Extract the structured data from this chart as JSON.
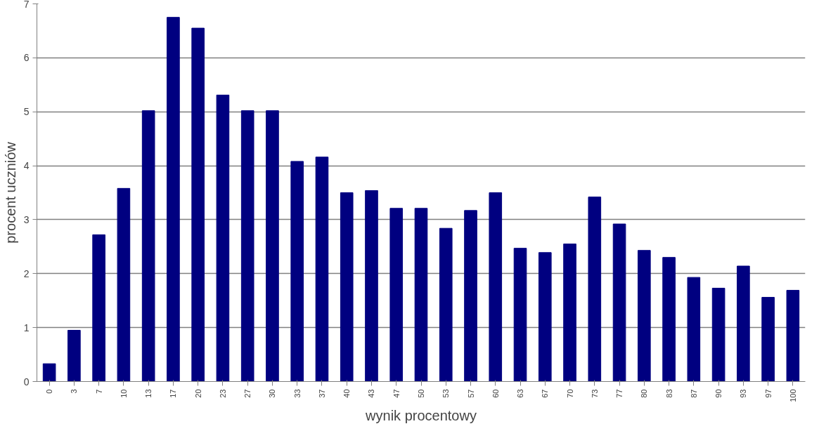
{
  "chart_data": {
    "type": "bar",
    "xlabel": "wynik procentowy",
    "ylabel": "procent uczniów",
    "categories": [
      "0",
      "3",
      "7",
      "10",
      "13",
      "17",
      "20",
      "23",
      "27",
      "30",
      "33",
      "37",
      "40",
      "43",
      "47",
      "50",
      "53",
      "57",
      "60",
      "63",
      "67",
      "70",
      "73",
      "77",
      "80",
      "83",
      "87",
      "90",
      "93",
      "97",
      "100"
    ],
    "values": [
      0.33,
      0.95,
      2.72,
      3.58,
      5.02,
      6.75,
      6.55,
      5.31,
      5.02,
      5.02,
      4.08,
      4.16,
      3.5,
      3.54,
      3.21,
      3.21,
      2.84,
      3.17,
      3.5,
      2.47,
      2.39,
      2.55,
      3.42,
      2.92,
      2.43,
      2.3,
      1.93,
      1.73,
      2.14,
      1.56,
      1.69
    ],
    "color": "#000080",
    "ylim": [
      0,
      7
    ],
    "yticks": [
      0,
      1,
      2,
      3,
      4,
      5,
      6,
      7
    ],
    "grid": "y"
  }
}
